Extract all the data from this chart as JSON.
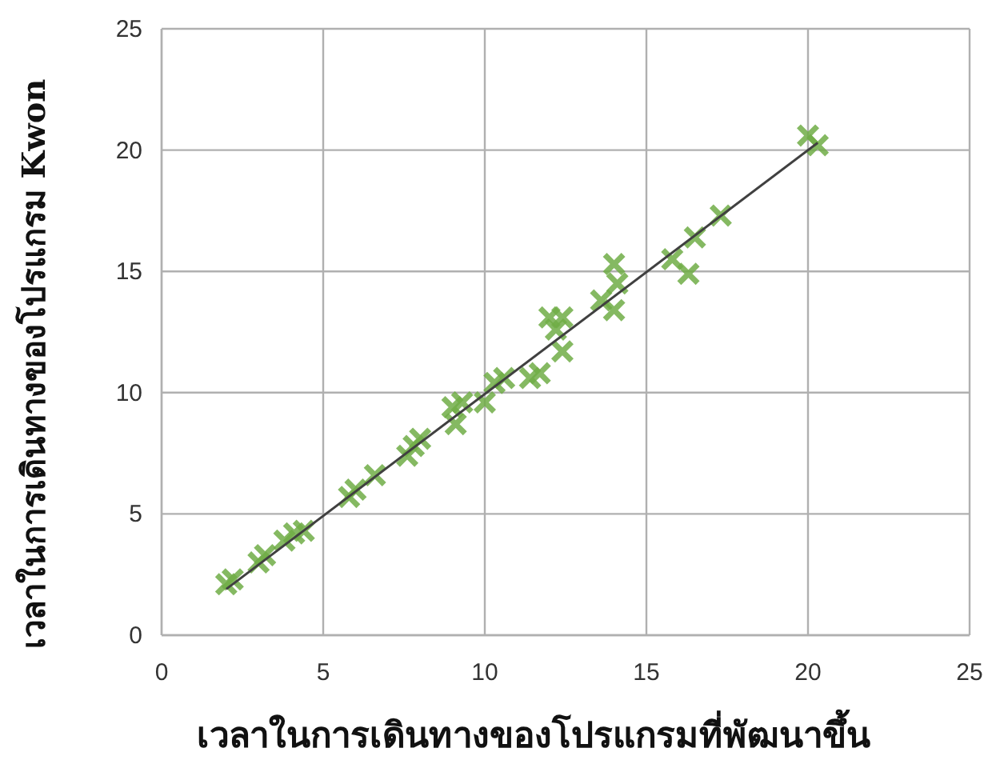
{
  "chart_data": {
    "type": "scatter",
    "xlabel": "เวลาในการเดินทางของโปรแกรมที่พัฒนาขึ้น",
    "ylabel": "เวลาในการเดินทางของโปรแกรม Kwon",
    "xlim": [
      0,
      25
    ],
    "ylim": [
      0,
      25
    ],
    "xticks": [
      0,
      5,
      10,
      15,
      20,
      25
    ],
    "yticks": [
      0,
      5,
      10,
      15,
      20,
      25
    ],
    "grid": true,
    "marker": "cross",
    "series": [
      {
        "color": "#70ad47",
        "x": [
          2.0,
          2.2,
          3.0,
          3.2,
          3.8,
          4.1,
          4.4,
          5.8,
          6.0,
          6.6,
          7.6,
          7.8,
          8.0,
          9.0,
          9.1,
          9.3,
          10.0,
          10.3,
          10.6,
          11.4,
          11.7,
          12.0,
          12.4,
          12.4,
          12.2,
          14.0,
          14.1,
          14.0,
          13.6,
          15.8,
          16.3,
          16.5,
          17.3,
          20.0,
          20.3
        ],
        "values": [
          2.1,
          2.3,
          3.0,
          3.3,
          3.9,
          4.2,
          4.3,
          5.7,
          6.0,
          6.6,
          7.4,
          7.8,
          8.1,
          9.4,
          8.7,
          9.6,
          9.6,
          10.4,
          10.6,
          10.6,
          10.8,
          13.1,
          13.1,
          11.7,
          12.6,
          15.3,
          14.5,
          13.4,
          13.8,
          15.5,
          14.9,
          16.4,
          17.3,
          20.6,
          20.2
        ]
      },
      {
        "type": "line",
        "color": "#404040",
        "marker": "none",
        "x": [
          2.0,
          20.3
        ],
        "values": [
          1.9,
          20.3
        ]
      }
    ]
  }
}
